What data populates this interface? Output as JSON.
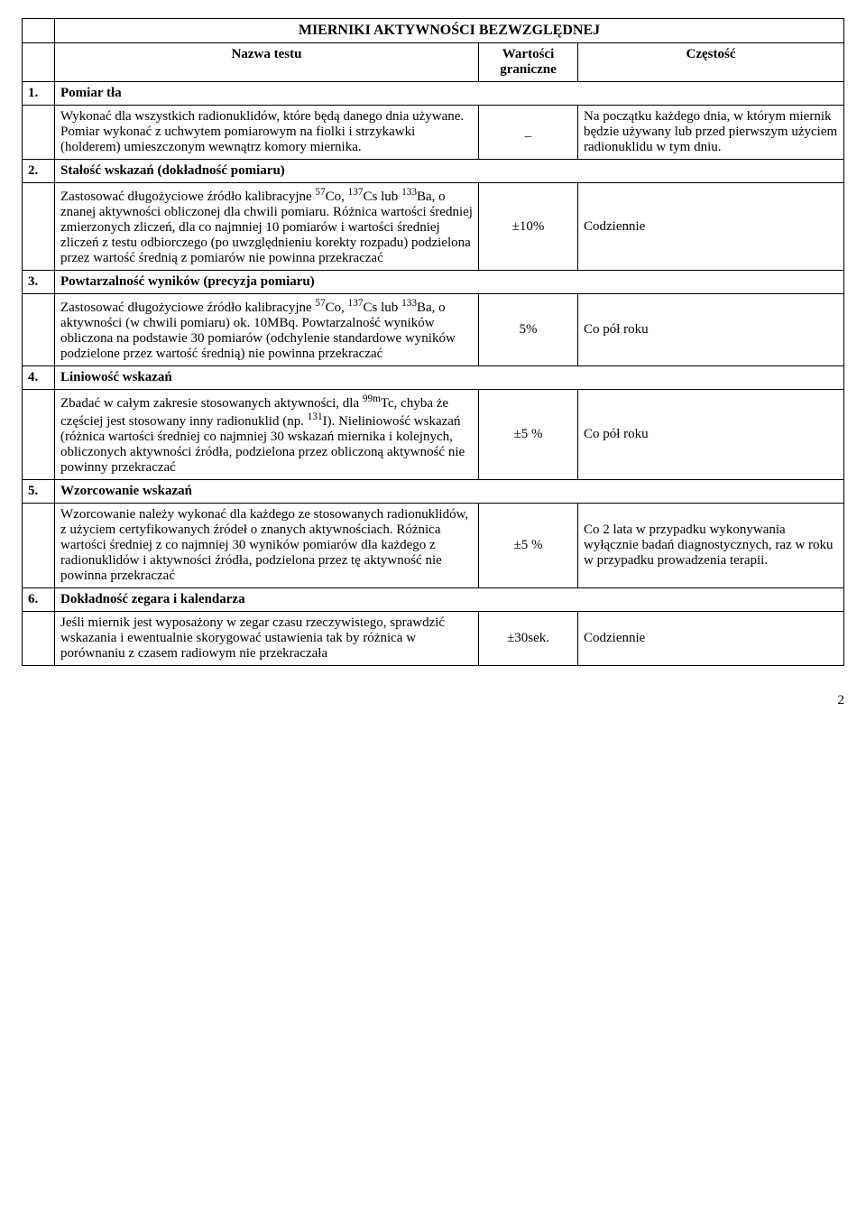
{
  "title": "MIERNIKI AKTYWNOŚCI BEZWZGLĘDNEJ",
  "headers": {
    "name": "Nazwa testu",
    "val": "Wartości graniczne",
    "freq": "Częstość"
  },
  "rows": [
    {
      "num": "1.",
      "section": "Pomiar tła",
      "desc_pre": "Wykonać dla wszystkich radionuklidów, które będą danego dnia używane. Pomiar wykonać z uchwytem pomiarowym na fiolki i strzykawki (holderem) umieszczonym wewnątrz komory miernika.",
      "val": "_",
      "freq": "Na początku każdego dnia, w którym miernik będzie używany lub przed pierwszym użyciem radionuklidu w tym dniu."
    },
    {
      "num": "2.",
      "section": "Stałość wskazań (dokładność pomiaru)",
      "desc_pre": "Zastosować długożyciowe źródło kalibracyjne ",
      "iso1": "57",
      "iso1_el": "Co, ",
      "iso2": "137",
      "iso2_el": "Cs lub ",
      "iso3": "133",
      "iso3_el": "Ba, o znanej aktywności obliczonej dla chwili pomiaru. Różnica wartości średniej zmierzonych zliczeń, dla co najmniej 10 pomiarów i wartości średniej zliczeń z testu odbiorczego (po uwzględnieniu korekty rozpadu) podzielona przez wartość średnią z pomiarów nie powinna przekraczać",
      "val": "±10%",
      "freq": "Codziennie"
    },
    {
      "num": "3.",
      "section": "Powtarzalność wyników (precyzja pomiaru)",
      "desc_pre": "Zastosować długożyciowe źródło kalibracyjne ",
      "iso1": "57",
      "iso1_el": "Co, ",
      "iso2": "137",
      "iso2_el": "Cs lub ",
      "iso3": "133",
      "iso3_el": "Ba, o aktywności (w chwili pomiaru) ok. 10MBq. Powtarzalność wyników obliczona na podstawie 30 pomiarów (odchylenie standardowe wyników podzielone przez wartość średnią) nie powinna przekraczać",
      "val": "5%",
      "freq": "Co pół roku"
    },
    {
      "num": "4.",
      "section": "Liniowość wskazań",
      "desc_pre": "Zbadać w całym zakresie stosowanych aktywności, dla ",
      "iso1": "99m",
      "iso1_el": "Tc, chyba że częściej jest stosowany inny radionuklid (np. ",
      "iso2": "131",
      "iso2_el": "I). Nieliniowość wskazań (różnica wartości średniej co najmniej 30 wskazań miernika i kolejnych, obliczonych aktywności źródła, podzielona przez obliczoną aktywność nie powinny przekraczać",
      "val": "±5 %",
      "freq": "Co pół roku"
    },
    {
      "num": "5.",
      "section": "Wzorcowanie wskazań",
      "desc_pre": "Wzorcowanie należy wykonać dla każdego ze stosowanych radionuklidów, z użyciem certyfikowanych źródeł o znanych aktywnościach. Różnica wartości średniej  z co najmniej 30 wyników pomiarów dla każdego z radionuklidów  i aktywności źródła, podzielona przez tę aktywność nie powinna przekraczać",
      "val": "±5 %",
      "freq": "Co 2 lata w przypadku wykonywania wyłącznie badań diagnostycznych, raz w roku w przypadku prowadzenia terapii."
    },
    {
      "num": "6.",
      "section": "Dokładność zegara i kalendarza",
      "desc_pre": "Jeśli miernik jest wyposażony w zegar czasu rzeczywistego, sprawdzić wskazania i ewentualnie skorygować ustawienia tak by różnica w porównaniu z czasem radiowym nie przekraczała",
      "val": "±30sek.",
      "freq": "Codziennie"
    }
  ],
  "page_number": "2"
}
